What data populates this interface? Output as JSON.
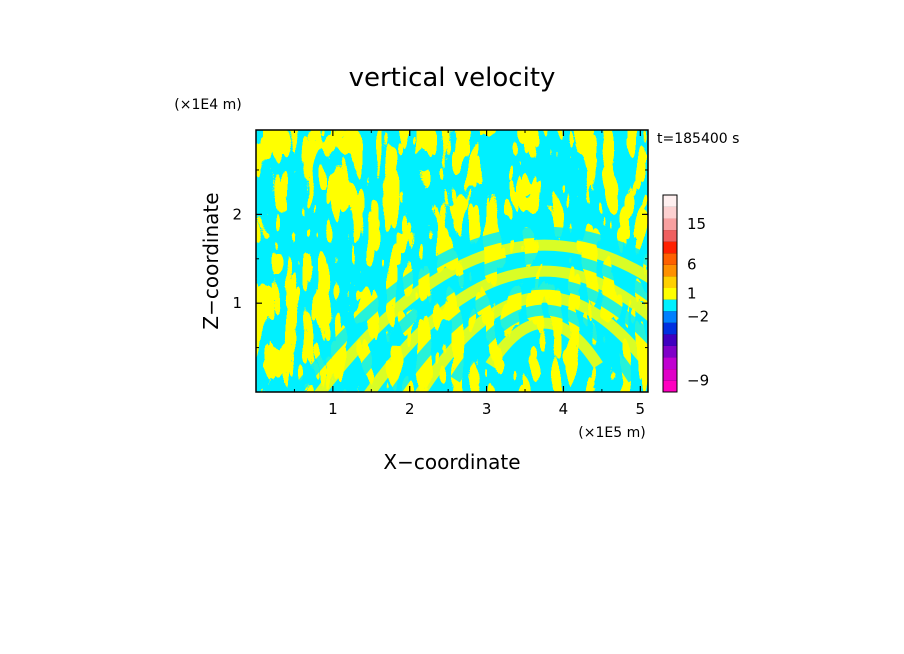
{
  "chart_data": {
    "type": "heatmap",
    "title": "vertical velocity",
    "xlabel": "X−coordinate",
    "ylabel": "Z−coordinate",
    "x_unit": "(×1E5 m)",
    "y_unit": "(×1E4 m)",
    "time_label": "t=185400 s",
    "xlim": [
      0,
      5.1
    ],
    "ylim": [
      0,
      2.95
    ],
    "x_ticks": [
      {
        "value": 1,
        "label": "1"
      },
      {
        "value": 2,
        "label": "2"
      },
      {
        "value": 3,
        "label": "3"
      },
      {
        "value": 4,
        "label": "4"
      },
      {
        "value": 5,
        "label": "5"
      }
    ],
    "y_ticks": [
      {
        "value": 1,
        "label": "1"
      },
      {
        "value": 2,
        "label": "2"
      }
    ],
    "field_colors": {
      "positive": "#ffff00",
      "negative": "#00f0ff"
    },
    "colorbar": {
      "bins": [
        {
          "color": "#ff00c0"
        },
        {
          "color": "#e000c8"
        },
        {
          "color": "#c000d0"
        },
        {
          "color": "#8000c8"
        },
        {
          "color": "#4000c0"
        },
        {
          "color": "#0030e0"
        },
        {
          "color": "#0080ff"
        },
        {
          "color": "#00f0ff"
        },
        {
          "color": "#ffff00"
        },
        {
          "color": "#ffd000"
        },
        {
          "color": "#ff9000"
        },
        {
          "color": "#ff6000"
        },
        {
          "color": "#ff2000"
        },
        {
          "color": "#f06060"
        },
        {
          "color": "#f8a0a0"
        },
        {
          "color": "#fcd0d0"
        },
        {
          "color": "#fff0f0"
        }
      ],
      "labels": [
        {
          "value": "−9",
          "bin": 1
        },
        {
          "value": "−2",
          "bin": 6.5
        },
        {
          "value": "1",
          "bin": 8.5
        },
        {
          "value": "6",
          "bin": 11
        },
        {
          "value": "15",
          "bin": 14.5
        }
      ]
    }
  }
}
